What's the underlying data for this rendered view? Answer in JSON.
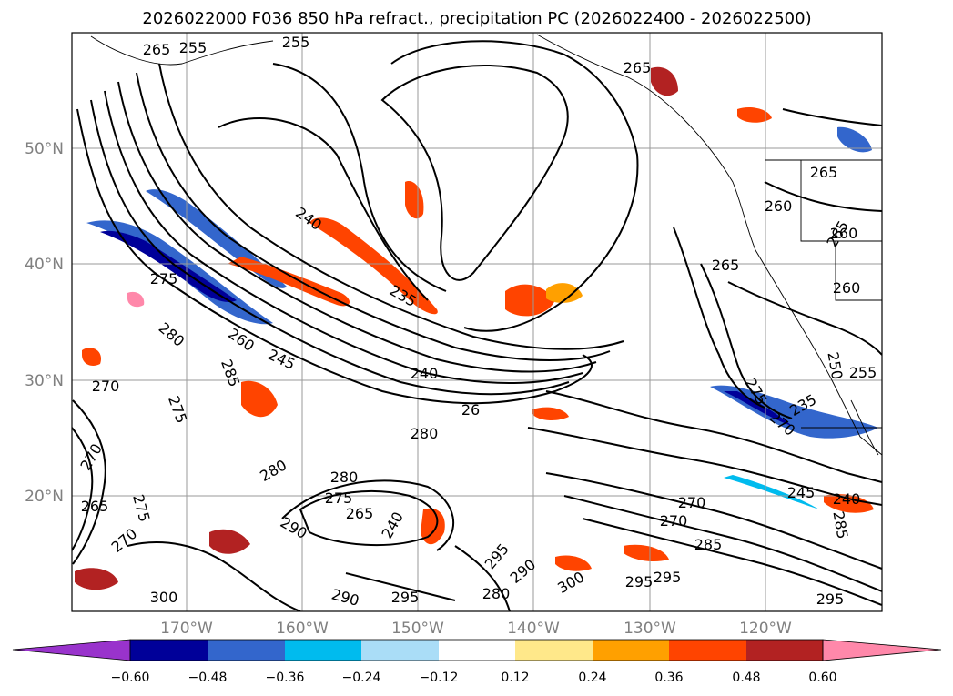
{
  "title": "2026022000 F036 850 hPa refract., precipitation PC (2026022400 - 2026022500)",
  "lat_labels": [
    "50°N",
    "40°N",
    "30°N",
    "20°N"
  ],
  "lon_labels": [
    "170°W",
    "160°W",
    "150°W",
    "140°W",
    "130°W",
    "120°W"
  ],
  "colorbar": {
    "ticks": [
      "−0.60",
      "−0.48",
      "−0.36",
      "−0.24",
      "−0.12",
      "0.12",
      "0.24",
      "0.36",
      "0.48",
      "0.60"
    ],
    "colors": [
      "#9933cc",
      "#000099",
      "#3366cc",
      "#00bbee",
      "#aaddf7",
      "#ffffff",
      "#ffe88a",
      "#ffa000",
      "#ff4400",
      "#b22222",
      "#ff88aa"
    ]
  },
  "contour_labels": [
    "265",
    "255",
    "255",
    "265",
    "260",
    "265",
    "260",
    "260",
    "265",
    "240",
    "275",
    "280",
    "260",
    "245",
    "285",
    "270",
    "275",
    "235",
    "240",
    "26",
    "280",
    "270",
    "290",
    "280",
    "280",
    "265",
    "275",
    "270",
    "240",
    "290",
    "295",
    "300",
    "290",
    "295",
    "300",
    "280",
    "295",
    "285",
    "270",
    "245",
    "240",
    "235",
    "295",
    "270",
    "285",
    "255",
    "250",
    "265",
    "275",
    "275",
    "270",
    "265",
    "295"
  ],
  "colors": {
    "coast": "#000000",
    "grid": "#9a9a9a",
    "contour": "#000000"
  }
}
